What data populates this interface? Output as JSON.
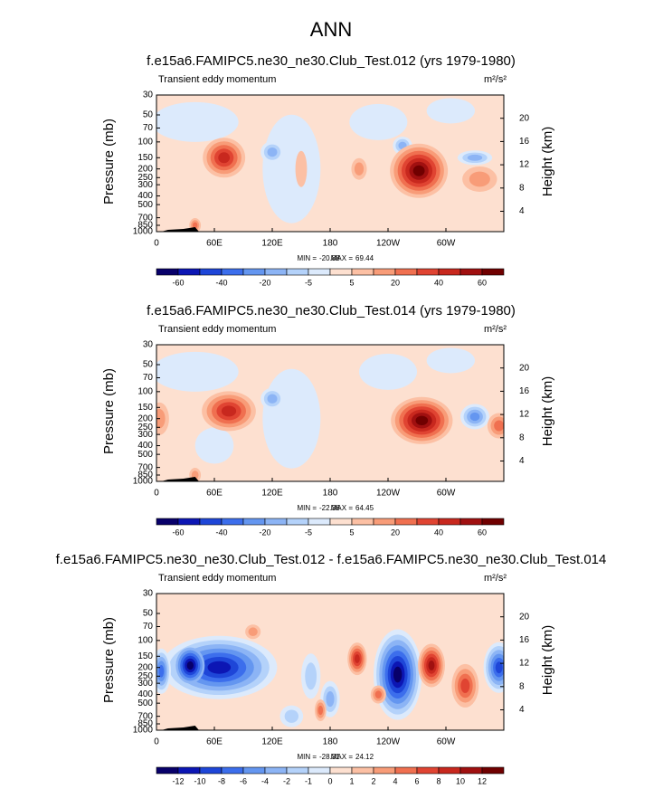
{
  "title": "ANN",
  "chart_data": [
    {
      "type": "contour",
      "title": "f.e15a6.FAMIPC5.ne30_ne30.Club_Test.012 (yrs 1979-1980)",
      "subtitle": "Transient eddy momentum",
      "units": "m²/s²",
      "ylabel": "Pressure (mb)",
      "y2label": "Height (km)",
      "xlim": [
        0,
        360
      ],
      "xticks": [
        0,
        {
          "value": 60,
          "label": "60E"
        },
        {
          "value": 120,
          "label": "120E"
        },
        180,
        {
          "value": 240,
          "label": "120W"
        },
        {
          "value": 300,
          "label": "60W"
        }
      ],
      "ylim": [
        1000,
        30
      ],
      "ylog": true,
      "yticks": [
        30,
        50,
        70,
        100,
        150,
        200,
        250,
        300,
        400,
        500,
        700,
        850,
        1000
      ],
      "y2lim": [
        0.5,
        24
      ],
      "y2ticks": [
        4,
        8,
        12,
        16,
        20
      ],
      "min_label": "MIN =",
      "min": -20.88,
      "max_label": "MAX =",
      "max": 69.44,
      "colors": [
        "#08006a",
        "#0c16b4",
        "#1e46d8",
        "#3c6eec",
        "#6496f0",
        "#8cb4f5",
        "#b4d2fa",
        "#dceafc",
        "#fde0d0",
        "#fcc0a4",
        "#f89c78",
        "#f07050",
        "#e04432",
        "#c8281e",
        "#a01010",
        "#700000"
      ],
      "colorbar_ticks": [
        -60,
        -40,
        -20,
        -5,
        5,
        20,
        40,
        60
      ]
    },
    {
      "type": "contour",
      "title": "f.e15a6.FAMIPC5.ne30_ne30.Club_Test.014 (yrs 1979-1980)",
      "subtitle": "Transient eddy momentum",
      "units": "m²/s²",
      "ylabel": "Pressure (mb)",
      "y2label": "Height (km)",
      "xlim": [
        0,
        360
      ],
      "xticks": [
        0,
        {
          "value": 60,
          "label": "60E"
        },
        {
          "value": 120,
          "label": "120E"
        },
        180,
        {
          "value": 240,
          "label": "120W"
        },
        {
          "value": 300,
          "label": "60W"
        }
      ],
      "ylim": [
        1000,
        30
      ],
      "ylog": true,
      "yticks": [
        30,
        50,
        70,
        100,
        150,
        200,
        250,
        300,
        400,
        500,
        700,
        850,
        1000
      ],
      "y2lim": [
        0.5,
        24
      ],
      "y2ticks": [
        4,
        8,
        12,
        16,
        20
      ],
      "min_label": "MIN =",
      "min": -22.36,
      "max_label": "MAX =",
      "max": 64.45,
      "colors": [
        "#08006a",
        "#0c16b4",
        "#1e46d8",
        "#3c6eec",
        "#6496f0",
        "#8cb4f5",
        "#b4d2fa",
        "#dceafc",
        "#fde0d0",
        "#fcc0a4",
        "#f89c78",
        "#f07050",
        "#e04432",
        "#c8281e",
        "#a01010",
        "#700000"
      ],
      "colorbar_ticks": [
        -60,
        -40,
        -20,
        -5,
        5,
        20,
        40,
        60
      ]
    },
    {
      "type": "contour",
      "title": "f.e15a6.FAMIPC5.ne30_ne30.Club_Test.012 - f.e15a6.FAMIPC5.ne30_ne30.Club_Test.014",
      "subtitle": "Transient eddy momentum",
      "units": "m²/s²",
      "ylabel": "Pressure (mb)",
      "y2label": "Height (km)",
      "xlim": [
        0,
        360
      ],
      "xticks": [
        0,
        {
          "value": 60,
          "label": "60E"
        },
        {
          "value": 120,
          "label": "120E"
        },
        180,
        {
          "value": 240,
          "label": "120W"
        },
        {
          "value": 300,
          "label": "60W"
        }
      ],
      "ylim": [
        1000,
        30
      ],
      "ylog": true,
      "yticks": [
        30,
        50,
        70,
        100,
        150,
        200,
        250,
        300,
        400,
        500,
        700,
        850,
        1000
      ],
      "y2lim": [
        0.5,
        24
      ],
      "y2ticks": [
        4,
        8,
        12,
        16,
        20
      ],
      "min_label": "MIN =",
      "min": -28.31,
      "max_label": "MAX =",
      "max": 24.12,
      "colors": [
        "#08006a",
        "#0c16b4",
        "#1e46d8",
        "#3c6eec",
        "#6496f0",
        "#8cb4f5",
        "#b4d2fa",
        "#dceafc",
        "#fde0d0",
        "#fcc0a4",
        "#f89c78",
        "#f07050",
        "#e04432",
        "#c8281e",
        "#a01010",
        "#700000"
      ],
      "colorbar_ticks": [
        -12,
        -10,
        -8,
        -6,
        -4,
        -2,
        -1,
        0,
        1,
        2,
        4,
        6,
        8,
        10,
        12
      ]
    }
  ]
}
